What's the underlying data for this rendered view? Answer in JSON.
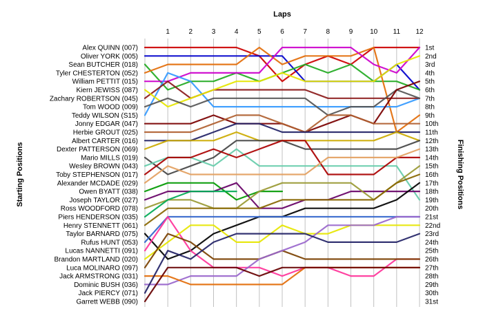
{
  "chart_data": {
    "type": "line",
    "title": "",
    "xlabel": "Laps",
    "ylabel_left": "Starting Positions",
    "ylabel_right": "Finishing Positions",
    "x": [
      0,
      1,
      2,
      3,
      4,
      5,
      6,
      7,
      8,
      9,
      10,
      11,
      12
    ],
    "x_tick_labels": [
      "1",
      "2",
      "3",
      "4",
      "5",
      "6",
      "7",
      "8",
      "9",
      "10",
      "11",
      "12"
    ],
    "starting_labels": [
      "Alex QUINN (007)",
      "Oliver YORK (005)",
      "Sean BUTCHER (018)",
      "Tyler CHESTERTON (052)",
      "William PETTIT (015)",
      "Kiern JEWISS (087)",
      "Zachary ROBERTSON (045)",
      "Tom WOOD (009)",
      "Teddy WILSON (S15)",
      "Jonny EDGAR (047)",
      "Herbie GROUT (025)",
      "Albert CARTER (016)",
      "Dexter PATTERSON (069)",
      "Mario MILLS (019)",
      "Wesley BROWN (043)",
      "Toby STEPHENSON (017)",
      "Alexander MCDADE (029)",
      "Owen BYATT (038)",
      "Joseph TAYLOR (027)",
      "Ross WOODFORD (078)",
      "Piers HENDERSON (035)",
      "Henry STENNETT (061)",
      "Taylor BARNARD (075)",
      "Rufus HUNT (053)",
      "Lucas NANNETTI (091)",
      "Brandon MARTLAND (020)",
      "Luca MOLINARO (097)",
      "Jack ARMSTRONG (031)",
      "Dominic BUSH (036)",
      "Jack PIERCY (071)",
      "Garrett WEBB (090)"
    ],
    "finishing_labels": [
      "1st",
      "2nd",
      "3rd",
      "4th",
      "5th",
      "6th",
      "7th",
      "8th",
      "9th",
      "10th",
      "11th",
      "12th",
      "13th",
      "14th",
      "15th",
      "16th",
      "17th",
      "18th",
      "19th",
      "20th",
      "21st",
      "22nd",
      "23rd",
      "24th",
      "25th",
      "26th",
      "27th",
      "28th",
      "29th",
      "30th",
      "31st"
    ],
    "ylim": [
      1,
      31
    ],
    "y_inverted": true,
    "grid": "vertical",
    "series": [
      {
        "name": "Alex QUINN (007)",
        "color": "#cc0000",
        "values": [
          1,
          1,
          1,
          1,
          1,
          2,
          5,
          3,
          2,
          3,
          1,
          1,
          1
        ]
      },
      {
        "name": "Oliver YORK (005)",
        "color": "#0000cc",
        "values": [
          2,
          2,
          2,
          2,
          2,
          2,
          2,
          5,
          5,
          5,
          5,
          3,
          6
        ]
      },
      {
        "name": "Sean BUTCHER (018)",
        "color": "#22aa22",
        "values": [
          3,
          6,
          5,
          5,
          4,
          5,
          4,
          3,
          4,
          3,
          5,
          5,
          6
        ]
      },
      {
        "name": "Tyler CHESTERTON (052)",
        "color": "#e36c09",
        "values": [
          4,
          3,
          3,
          3,
          3,
          1,
          3,
          2,
          2,
          2,
          1,
          11,
          9
        ]
      },
      {
        "name": "William PETTIT (015)",
        "color": "#cc00cc",
        "values": [
          5,
          5,
          4,
          4,
          4,
          4,
          1,
          1,
          1,
          1,
          3,
          4,
          1
        ]
      },
      {
        "name": "Kiern JEWISS (087)",
        "color": "#3399ff",
        "values": [
          9,
          4,
          5,
          8,
          8,
          8,
          8,
          8,
          8,
          8,
          8,
          8,
          7
        ]
      },
      {
        "name": "Zachary ROBERTSON (045)",
        "color": "#8b1a1a",
        "values": [
          7,
          5,
          7,
          6,
          6,
          6,
          6,
          6,
          7,
          7,
          7,
          7,
          7
        ]
      },
      {
        "name": "Tom WOOD (009)",
        "color": "#e6e600",
        "values": [
          6,
          8,
          7,
          6,
          5,
          5,
          4,
          5,
          5,
          5,
          5,
          3,
          2
        ]
      },
      {
        "name": "Teddy WILSON (S15)",
        "color": "#555555",
        "values": [
          8,
          7,
          8,
          7,
          7,
          7,
          7,
          7,
          9,
          8,
          8,
          6,
          7
        ]
      },
      {
        "name": "Jonny EDGAR (047)",
        "color": "#7a0000",
        "values": [
          10,
          10,
          10,
          9,
          10,
          10,
          10,
          11,
          10,
          9,
          10,
          6,
          5
        ]
      },
      {
        "name": "Herbie GROUT (025)",
        "color": "#b06030",
        "values": [
          11,
          11,
          11,
          10,
          9,
          9,
          10,
          11,
          9,
          9,
          10,
          10,
          10
        ]
      },
      {
        "name": "Albert CARTER (016)",
        "color": "#222266",
        "values": [
          12,
          12,
          12,
          11,
          10,
          10,
          11,
          11,
          11,
          11,
          11,
          11,
          11
        ]
      },
      {
        "name": "Dexter PATTERSON (069)",
        "color": "#ccaa00",
        "values": [
          13,
          12,
          12,
          12,
          11,
          12,
          12,
          12,
          12,
          12,
          12,
          11,
          12
        ]
      },
      {
        "name": "Mario MILLS (019)",
        "color": "#444444",
        "values": [
          14,
          16,
          15,
          14,
          12,
          12,
          12,
          13,
          13,
          13,
          13,
          13,
          12
        ]
      },
      {
        "name": "Wesley BROWN (043)",
        "color": "#66ccaa",
        "values": [
          15,
          14,
          14,
          15,
          13,
          15,
          15,
          15,
          15,
          15,
          15,
          15,
          19
        ]
      },
      {
        "name": "Toby STEPHENSON (017)",
        "color": "#aa0000",
        "values": [
          16,
          14,
          14,
          13,
          14,
          13,
          12,
          12,
          16,
          16,
          16,
          14,
          14
        ]
      },
      {
        "name": "Alexander MCDADE (029)",
        "color": "#e3a060",
        "values": [
          17,
          15,
          16,
          16,
          16,
          16,
          16,
          16,
          14,
          14,
          14,
          14,
          13
        ]
      },
      {
        "name": "Owen BYATT (038)",
        "color": "#009900",
        "values": [
          18,
          17,
          17,
          17,
          19,
          18,
          18,
          null,
          null,
          null,
          null,
          null,
          null
        ]
      },
      {
        "name": "Joseph TAYLOR (027)",
        "color": "#660066",
        "values": [
          19,
          18,
          18,
          18,
          17,
          20,
          20,
          19,
          19,
          18,
          18,
          18,
          18
        ]
      },
      {
        "name": "Ross WOODFORD (078)",
        "color": "#999933",
        "values": [
          20,
          19,
          19,
          20,
          20,
          18,
          17,
          17,
          17,
          17,
          19,
          17,
          15
        ]
      },
      {
        "name": "Piers HENDERSON (035)",
        "color": "#00aa55",
        "values": [
          21,
          19,
          18,
          18,
          18,
          null,
          null,
          null,
          null,
          null,
          null,
          null,
          null
        ]
      },
      {
        "name": "Henry STENNETT (061)",
        "color": "#886600",
        "values": [
          22,
          20,
          20,
          20,
          20,
          20,
          19,
          19,
          19,
          19,
          19,
          17,
          16
        ]
      },
      {
        "name": "Taylor BARNARD (075)",
        "color": "#000000",
        "values": [
          23,
          26,
          25,
          23,
          22,
          21,
          21,
          20,
          20,
          20,
          20,
          19,
          17
        ]
      },
      {
        "name": "Rufus HUNT (053)",
        "color": "#3366cc",
        "values": [
          24,
          21,
          21,
          21,
          21,
          21,
          21,
          21,
          21,
          21,
          21,
          21,
          21
        ]
      },
      {
        "name": "Lucas NANNETTI (091)",
        "color": "#ff3399",
        "values": [
          25,
          21,
          25,
          27,
          27,
          27,
          28,
          27,
          27,
          28,
          28,
          26,
          26
        ]
      },
      {
        "name": "Brandon MARTLAND (020)",
        "color": "#e6e600",
        "values": [
          26,
          24,
          22,
          22,
          24,
          24,
          22,
          23,
          23,
          22,
          22,
          22,
          22
        ]
      },
      {
        "name": "Luca MOLINARO (097)",
        "color": "#7a4000",
        "values": [
          27,
          23,
          24,
          26,
          26,
          26,
          25,
          26,
          26,
          26,
          26,
          26,
          26
        ]
      },
      {
        "name": "Jack ARMSTRONG (031)",
        "color": "#9966cc",
        "values": [
          29,
          29,
          28,
          28,
          28,
          26,
          25,
          24,
          22,
          22,
          22,
          21,
          21
        ]
      },
      {
        "name": "Dominic BUSH (036)",
        "color": "#e36c09",
        "values": [
          28,
          28,
          29,
          29,
          29,
          29,
          29,
          27,
          27,
          27,
          27,
          27,
          27
        ]
      },
      {
        "name": "Jack PIERCY (071)",
        "color": "#222266",
        "values": [
          30,
          25,
          26,
          24,
          23,
          23,
          23,
          23,
          24,
          24,
          24,
          24,
          23
        ]
      },
      {
        "name": "Garrett WEBB (090)",
        "color": "#660000",
        "values": [
          31,
          27,
          27,
          27,
          27,
          28,
          27,
          27,
          27,
          27,
          27,
          27,
          27
        ]
      }
    ]
  }
}
